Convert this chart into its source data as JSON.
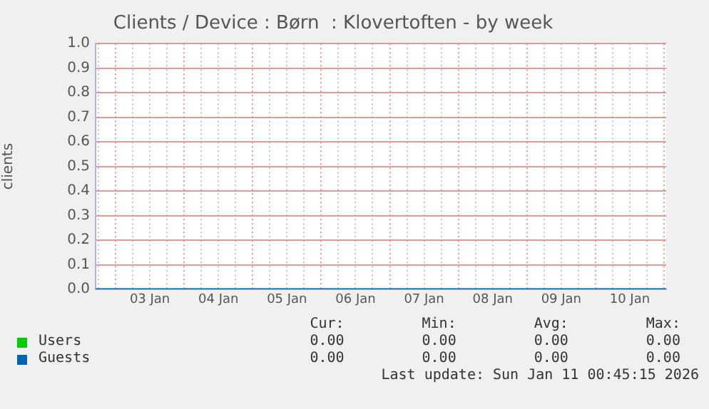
{
  "chart_data": {
    "type": "line",
    "title": "Clients / Device : Børn  : Klovertoften - by week",
    "ylabel": "clients",
    "x": [
      "2026-01-02T17:00",
      "2026-01-03T00:00",
      "2026-01-04T00:00",
      "2026-01-05T00:00",
      "2026-01-06T00:00",
      "2026-01-07T00:00",
      "2026-01-08T00:00",
      "2026-01-09T00:00",
      "2026-01-10T00:00",
      "2026-01-11T00:00",
      "2026-01-11T00:45"
    ],
    "series": [
      {
        "name": "Users",
        "color": "#00cc00",
        "values": [
          null,
          null,
          null,
          null,
          null,
          null,
          null,
          null,
          null,
          null,
          null
        ]
      },
      {
        "name": "Guests",
        "color": "#0066b3",
        "values": [
          0,
          0,
          0,
          0,
          0,
          0,
          0,
          0,
          0,
          0,
          0
        ]
      }
    ],
    "xlim": [
      "2026-01-02T17:00",
      "2026-01-11T00:45"
    ],
    "xticks": [
      {
        "value": "2026-01-02T18:00",
        "label": null
      },
      {
        "value": "2026-01-03T00:00",
        "label": null
      },
      {
        "value": "2026-01-03T06:00",
        "label": null
      },
      {
        "value": "2026-01-03T12:00",
        "label": "03 Jan"
      },
      {
        "value": "2026-01-03T18:00",
        "label": null
      },
      {
        "value": "2026-01-04T00:00",
        "label": null
      },
      {
        "value": "2026-01-04T06:00",
        "label": null
      },
      {
        "value": "2026-01-04T12:00",
        "label": "04 Jan"
      },
      {
        "value": "2026-01-04T18:00",
        "label": null
      },
      {
        "value": "2026-01-05T00:00",
        "label": null
      },
      {
        "value": "2026-01-05T06:00",
        "label": null
      },
      {
        "value": "2026-01-05T12:00",
        "label": "05 Jan"
      },
      {
        "value": "2026-01-05T18:00",
        "label": null
      },
      {
        "value": "2026-01-06T00:00",
        "label": null
      },
      {
        "value": "2026-01-06T06:00",
        "label": null
      },
      {
        "value": "2026-01-06T12:00",
        "label": "06 Jan"
      },
      {
        "value": "2026-01-06T18:00",
        "label": null
      },
      {
        "value": "2026-01-07T00:00",
        "label": null
      },
      {
        "value": "2026-01-07T06:00",
        "label": null
      },
      {
        "value": "2026-01-07T12:00",
        "label": "07 Jan"
      },
      {
        "value": "2026-01-07T18:00",
        "label": null
      },
      {
        "value": "2026-01-08T00:00",
        "label": null
      },
      {
        "value": "2026-01-08T06:00",
        "label": null
      },
      {
        "value": "2026-01-08T12:00",
        "label": "08 Jan"
      },
      {
        "value": "2026-01-08T18:00",
        "label": null
      },
      {
        "value": "2026-01-09T00:00",
        "label": null
      },
      {
        "value": "2026-01-09T06:00",
        "label": null
      },
      {
        "value": "2026-01-09T12:00",
        "label": "09 Jan"
      },
      {
        "value": "2026-01-09T18:00",
        "label": null
      },
      {
        "value": "2026-01-10T00:00",
        "label": null
      },
      {
        "value": "2026-01-10T06:00",
        "label": null
      },
      {
        "value": "2026-01-10T12:00",
        "label": "10 Jan"
      },
      {
        "value": "2026-01-10T18:00",
        "label": null
      },
      {
        "value": "2026-01-11T00:00",
        "label": null
      }
    ],
    "ylim": [
      0,
      1
    ],
    "yticks": [
      {
        "value": 0,
        "label": "0.0"
      },
      {
        "value": 0.1,
        "label": "0.1"
      },
      {
        "value": 0.2,
        "label": "0.2"
      },
      {
        "value": 0.3,
        "label": "0.3"
      },
      {
        "value": 0.4,
        "label": "0.4"
      },
      {
        "value": 0.5,
        "label": "0.5"
      },
      {
        "value": 0.6,
        "label": "0.6"
      },
      {
        "value": 0.7,
        "label": "0.7"
      },
      {
        "value": 0.8,
        "label": "0.8"
      },
      {
        "value": 0.9,
        "label": "0.9"
      },
      {
        "value": 1,
        "label": "1.0"
      }
    ],
    "grid": true,
    "legend": "bottom left",
    "marker": "none",
    "line_style": "solid",
    "annotations": [
      "Cur:",
      "Min:",
      "Avg:",
      "Max:",
      "0.00",
      "0.00",
      "0.00",
      "0.00",
      "0.00",
      "0.00",
      "0.00",
      "0.00",
      "Last update: Sun Jan 11 00:45:15 2026"
    ]
  }
}
